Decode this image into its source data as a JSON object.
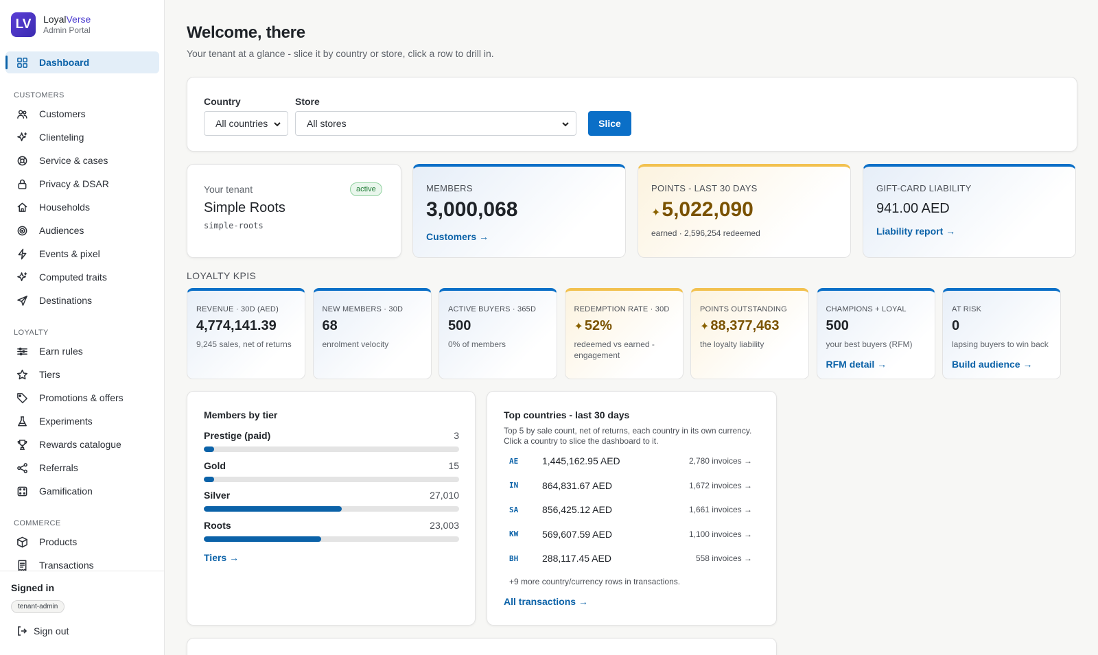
{
  "brand": {
    "logo": "LV",
    "name_a": "Loyal",
    "name_b": "Verse",
    "subtitle": "Admin Portal"
  },
  "nav": {
    "dashboard": "Dashboard",
    "sections": {
      "customers": "CUSTOMERS",
      "loyalty": "LOYALTY",
      "commerce": "COMMERCE"
    },
    "customers_items": [
      {
        "label": "Customers",
        "icon": "users-icon"
      },
      {
        "label": "Clienteling",
        "icon": "sparkle-icon"
      },
      {
        "label": "Service & cases",
        "icon": "lifebuoy-icon"
      },
      {
        "label": "Privacy & DSAR",
        "icon": "lock-icon"
      },
      {
        "label": "Households",
        "icon": "home-icon"
      },
      {
        "label": "Audiences",
        "icon": "target-icon"
      },
      {
        "label": "Events & pixel",
        "icon": "bolt-icon"
      },
      {
        "label": "Computed traits",
        "icon": "sparkle-icon"
      },
      {
        "label": "Destinations",
        "icon": "send-icon"
      }
    ],
    "loyalty_items": [
      {
        "label": "Earn rules",
        "icon": "sliders-icon"
      },
      {
        "label": "Tiers",
        "icon": "star-icon"
      },
      {
        "label": "Promotions & offers",
        "icon": "tag-icon"
      },
      {
        "label": "Experiments",
        "icon": "flask-icon"
      },
      {
        "label": "Rewards catalogue",
        "icon": "trophy-icon"
      },
      {
        "label": "Referrals",
        "icon": "share-icon"
      },
      {
        "label": "Gamification",
        "icon": "dice-icon"
      }
    ],
    "commerce_items": [
      {
        "label": "Products",
        "icon": "box-icon"
      },
      {
        "label": "Transactions",
        "icon": "receipt-icon"
      }
    ]
  },
  "signed_in": {
    "title": "Signed in",
    "role": "tenant-admin",
    "signout": "Sign out"
  },
  "header": {
    "title": "Welcome, there",
    "subtitle": "Your tenant at a glance - slice it by country or store, click a row to drill in."
  },
  "filters": {
    "country_label": "Country",
    "country_value": "All countries",
    "store_label": "Store",
    "store_value": "All stores",
    "slice_button": "Slice"
  },
  "tenant": {
    "label": "Your tenant",
    "status": "active",
    "name": "Simple Roots",
    "slug": "simple-roots"
  },
  "top_kpis": {
    "members": {
      "label": "MEMBERS",
      "value": "3,000,068",
      "link": "Customers →"
    },
    "points": {
      "label": "POINTS - LAST 30 DAYS",
      "value": "5,022,090",
      "sub": "earned · 2,596,254 redeemed"
    },
    "giftcard": {
      "label": "GIFT-CARD LIABILITY",
      "value": "941.00 AED",
      "link": "Liability report →"
    }
  },
  "loyalty_kpis_label": "LOYALTY KPIS",
  "loyalty_kpis": [
    {
      "label": "REVENUE · 30D (AED)",
      "value": "4,774,141.39",
      "sub": "9,245 sales, net of returns",
      "link": "",
      "style": "blue"
    },
    {
      "label": "NEW MEMBERS · 30D",
      "value": "68",
      "sub": "enrolment velocity",
      "link": "",
      "style": "blue"
    },
    {
      "label": "ACTIVE BUYERS · 365D",
      "value": "500",
      "sub": "0% of members",
      "link": "",
      "style": "blue"
    },
    {
      "label": "REDEMPTION RATE · 30D",
      "value": "52%",
      "sub": "redeemed vs earned - engagement",
      "link": "",
      "style": "gold"
    },
    {
      "label": "POINTS OUTSTANDING",
      "value": "88,377,463",
      "sub": "the loyalty liability",
      "link": "",
      "style": "gold"
    },
    {
      "label": "CHAMPIONS + LOYAL",
      "value": "500",
      "sub": "your best buyers (RFM)",
      "link": "RFM detail →",
      "style": "blue"
    },
    {
      "label": "AT RISK",
      "value": "0",
      "sub": "lapsing buyers to win back",
      "link": "Build audience →",
      "style": "blue"
    }
  ],
  "tiers": {
    "title": "Members by tier",
    "rows": [
      {
        "name": "Prestige (paid)",
        "count": "3",
        "fraction": 0.04
      },
      {
        "name": "Gold",
        "count": "15",
        "fraction": 0.04
      },
      {
        "name": "Silver",
        "count": "27,010",
        "fraction": 0.54
      },
      {
        "name": "Roots",
        "count": "23,003",
        "fraction": 0.46
      }
    ],
    "link": "Tiers →"
  },
  "countries": {
    "title": "Top countries - last 30 days",
    "subtitle": "Top 5 by sale count, net of returns, each country in its own currency. Click a country to slice the dashboard to it.",
    "rows": [
      {
        "code": "AE",
        "amount": "1,445,162.95 AED",
        "invoices": "2,780 invoices →"
      },
      {
        "code": "IN",
        "amount": "864,831.67 AED",
        "invoices": "1,672 invoices →"
      },
      {
        "code": "SA",
        "amount": "856,425.12 AED",
        "invoices": "1,661 invoices →"
      },
      {
        "code": "KW",
        "amount": "569,607.59 AED",
        "invoices": "1,100 invoices →"
      },
      {
        "code": "BH",
        "amount": "288,117.45 AED",
        "invoices": "558 invoices →"
      }
    ],
    "more": "+9 more country/currency rows in transactions.",
    "link": "All transactions →"
  }
}
